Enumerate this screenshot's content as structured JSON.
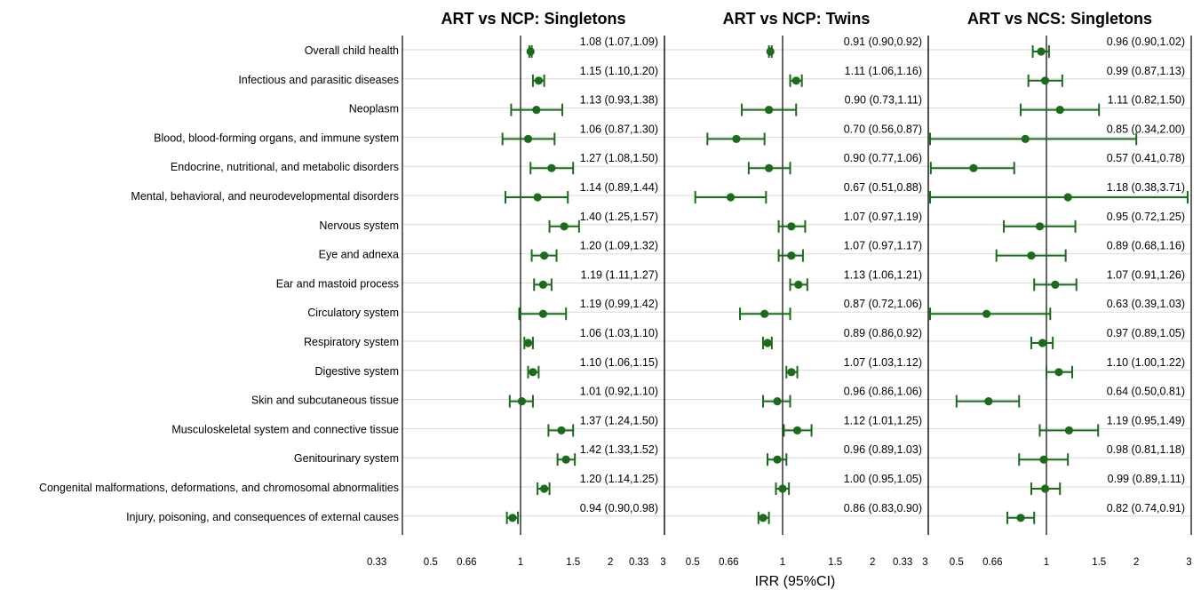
{
  "chart_data": {
    "type": "forest",
    "xlabel": "IRR (95%CI)",
    "x_scale": "log",
    "x_ticks": [
      0.33,
      0.5,
      0.66,
      1,
      1.5,
      2,
      3
    ],
    "x_tick_labels": [
      "0.33",
      "0.5",
      "0.66",
      "1",
      "1.5",
      "2",
      "3"
    ],
    "reference_line": 1,
    "grid": "horizontal",
    "colors": {
      "marker": "#1a6b1a",
      "gridline": "#d9d9d9",
      "axis": "#000000"
    },
    "categories": [
      "Overall child health",
      "Infectious and parasitic diseases",
      "Neoplasm",
      "Blood, blood-forming organs, and immune system",
      "Endocrine, nutritional, and metabolic disorders",
      "Mental, behavioral, and neurodevelopmental disorders",
      "Nervous system",
      "Eye and adnexa",
      "Ear and mastoid process",
      "Circulatory system",
      "Respiratory system",
      "Digestive system",
      "Skin and subcutaneous tissue",
      "Musculoskeletal system and connective tissue",
      "Genitourinary system",
      "Congenital malformations, deformations, and chromosomal abnormalities",
      "Injury, poisoning, and consequences of external causes"
    ],
    "panels": [
      {
        "title": "ART vs NCP: Singletons",
        "labels": [
          "1.08 (1.07,1.09)",
          "1.15 (1.10,1.20)",
          "1.13 (0.93,1.38)",
          "1.06 (0.87,1.30)",
          "1.27 (1.08,1.50)",
          "1.14 (0.89,1.44)",
          "1.40 (1.25,1.57)",
          "1.20 (1.09,1.32)",
          "1.19 (1.11,1.27)",
          "1.19 (0.99,1.42)",
          "1.06 (1.03,1.10)",
          "1.10 (1.06,1.15)",
          "1.01 (0.92,1.10)",
          "1.37 (1.24,1.50)",
          "1.42 (1.33,1.52)",
          "1.20 (1.14,1.25)",
          "0.94 (0.90,0.98)"
        ],
        "est": [
          1.08,
          1.15,
          1.13,
          1.06,
          1.27,
          1.14,
          1.4,
          1.2,
          1.19,
          1.19,
          1.06,
          1.1,
          1.01,
          1.37,
          1.42,
          1.2,
          0.94
        ],
        "low": [
          1.07,
          1.1,
          0.93,
          0.87,
          1.08,
          0.89,
          1.25,
          1.09,
          1.11,
          0.99,
          1.03,
          1.06,
          0.92,
          1.24,
          1.33,
          1.14,
          0.9
        ],
        "high": [
          1.09,
          1.2,
          1.38,
          1.3,
          1.5,
          1.44,
          1.57,
          1.32,
          1.27,
          1.42,
          1.1,
          1.15,
          1.1,
          1.5,
          1.52,
          1.25,
          0.98
        ]
      },
      {
        "title": "ART vs NCP: Twins",
        "labels": [
          "0.91 (0.90,0.92)",
          "1.11 (1.06,1.16)",
          "0.90 (0.73,1.11)",
          "0.70 (0.56,0.87)",
          "0.90 (0.77,1.06)",
          "0.67 (0.51,0.88)",
          "1.07 (0.97,1.19)",
          "1.07 (0.97,1.17)",
          "1.13 (1.06,1.21)",
          "0.87 (0.72,1.06)",
          "0.89 (0.86,0.92)",
          "1.07 (1.03,1.12)",
          "0.96 (0.86,1.06)",
          "1.12 (1.01,1.25)",
          "0.96 (0.89,1.03)",
          "1.00 (0.95,1.05)",
          "0.86 (0.83,0.90)"
        ],
        "est": [
          0.91,
          1.11,
          0.9,
          0.7,
          0.9,
          0.67,
          1.07,
          1.07,
          1.13,
          0.87,
          0.89,
          1.07,
          0.96,
          1.12,
          0.96,
          1.0,
          0.86
        ],
        "low": [
          0.9,
          1.06,
          0.73,
          0.56,
          0.77,
          0.51,
          0.97,
          0.97,
          1.06,
          0.72,
          0.86,
          1.03,
          0.86,
          1.01,
          0.89,
          0.95,
          0.83
        ],
        "high": [
          0.92,
          1.16,
          1.11,
          0.87,
          1.06,
          0.88,
          1.19,
          1.17,
          1.21,
          1.06,
          0.92,
          1.12,
          1.06,
          1.25,
          1.03,
          1.05,
          0.9
        ]
      },
      {
        "title": "ART vs NCS: Singletons",
        "labels": [
          "0.96 (0.90,1.02)",
          "0.99 (0.87,1.13)",
          "1.11 (0.82,1.50)",
          "0.85 (0.34,2.00)",
          "0.57 (0.41,0.78)",
          "1.18 (0.38,3.71)",
          "0.95 (0.72,1.25)",
          "0.89 (0.68,1.16)",
          "1.07 (0.91,1.26)",
          "0.63 (0.39,1.03)",
          "0.97 (0.89,1.05)",
          "1.10 (1.00,1.22)",
          "0.64 (0.50,0.81)",
          "1.19 (0.95,1.49)",
          "0.98 (0.81,1.18)",
          "0.99 (0.89,1.11)",
          "0.82 (0.74,0.91)"
        ],
        "est": [
          0.96,
          0.99,
          1.11,
          0.85,
          0.57,
          1.18,
          0.95,
          0.89,
          1.07,
          0.63,
          0.97,
          1.1,
          0.64,
          1.19,
          0.98,
          0.99,
          0.82
        ],
        "low": [
          0.9,
          0.87,
          0.82,
          0.34,
          0.41,
          0.38,
          0.72,
          0.68,
          0.91,
          0.39,
          0.89,
          1.0,
          0.5,
          0.95,
          0.81,
          0.89,
          0.74
        ],
        "high": [
          1.02,
          1.13,
          1.5,
          2.0,
          0.78,
          3.71,
          1.25,
          1.16,
          1.26,
          1.03,
          1.05,
          1.22,
          0.81,
          1.49,
          1.18,
          1.11,
          0.91
        ]
      }
    ]
  }
}
